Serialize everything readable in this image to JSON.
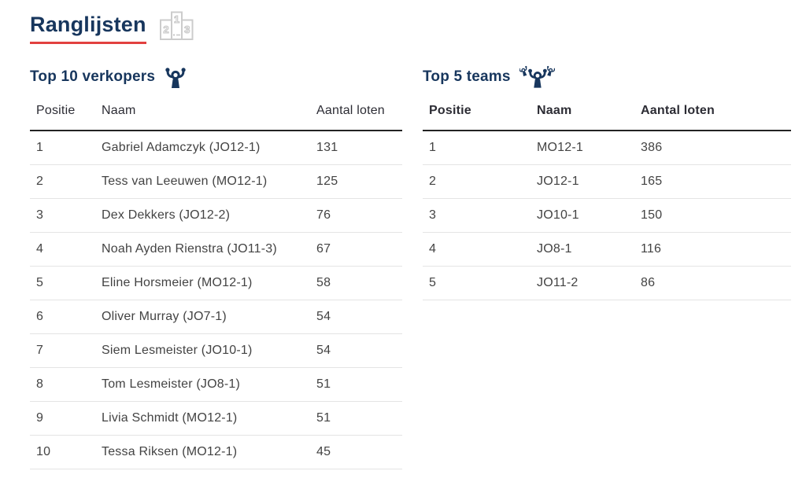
{
  "header": {
    "title": "Ranglijsten",
    "podium": {
      "second": "2",
      "first": "1",
      "third": "3"
    }
  },
  "colors": {
    "navy": "#17365d",
    "red_accent": "#e2403f",
    "body_text": "#434343",
    "header_rule": "#232323",
    "row_divider": "#e4e4e4",
    "podium_gray": "#c9c9c9"
  },
  "icons": {
    "page": "podium-123-icon",
    "sellers": "cheering-person-icon",
    "teams": "cheering-team-icon"
  },
  "tables": {
    "sellers": {
      "heading": "Top 10 verkopers",
      "columns": [
        "Positie",
        "Naam",
        "Aantal loten"
      ],
      "rows": [
        [
          "1",
          "Gabriel Adamczyk (JO12-1)",
          "131"
        ],
        [
          "2",
          "Tess van Leeuwen (MO12-1)",
          "125"
        ],
        [
          "3",
          "Dex Dekkers (JO12-2)",
          "76"
        ],
        [
          "4",
          "Noah Ayden Rienstra (JO11-3)",
          "67"
        ],
        [
          "5",
          "Eline Horsmeier (MO12-1)",
          "58"
        ],
        [
          "6",
          "Oliver Murray (JO7-1)",
          "54"
        ],
        [
          "7",
          "Siem Lesmeister (JO10-1)",
          "54"
        ],
        [
          "8",
          "Tom Lesmeister (JO8-1)",
          "51"
        ],
        [
          "9",
          "Livia Schmidt (MO12-1)",
          "51"
        ],
        [
          "10",
          "Tessa Riksen (MO12-1)",
          "45"
        ]
      ]
    },
    "teams": {
      "heading": "Top 5 teams",
      "columns": [
        "Positie",
        "Naam",
        "Aantal loten"
      ],
      "rows": [
        [
          "1",
          "MO12-1",
          "386"
        ],
        [
          "2",
          "JO12-1",
          "165"
        ],
        [
          "3",
          "JO10-1",
          "150"
        ],
        [
          "4",
          "JO8-1",
          "116"
        ],
        [
          "5",
          "JO11-2",
          "86"
        ]
      ]
    }
  }
}
